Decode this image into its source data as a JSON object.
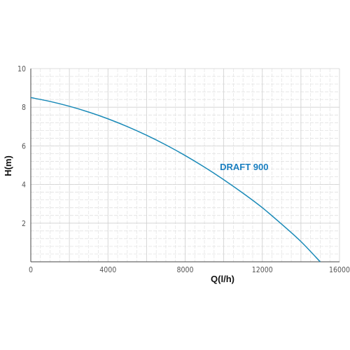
{
  "chart_data": {
    "type": "line",
    "xlabel": "Q(l/h)",
    "ylabel": "H(m)",
    "xlim": [
      0,
      16000
    ],
    "ylim": [
      0,
      10
    ],
    "x_ticks": [
      0,
      4000,
      8000,
      12000,
      16000
    ],
    "x_tick_labels": [
      "0",
      "4000",
      "8000",
      "12000",
      "16000"
    ],
    "y_ticks": [
      2,
      4,
      6,
      8,
      10
    ],
    "y_tick_labels": [
      "2",
      "4",
      "6",
      "8",
      "10"
    ],
    "grid": true,
    "series": [
      {
        "name": "DRAFT 900",
        "color": "#1a8ab8",
        "label_color": "#1a7fc0",
        "x": [
          0,
          1000,
          2000,
          3000,
          4000,
          5000,
          6000,
          7000,
          8000,
          9000,
          10000,
          11000,
          12000,
          13000,
          14000,
          15000
        ],
        "y": [
          8.5,
          8.3,
          8.05,
          7.75,
          7.4,
          7.0,
          6.55,
          6.05,
          5.5,
          4.9,
          4.25,
          3.55,
          2.8,
          1.95,
          1.05,
          0.0
        ]
      }
    ]
  }
}
